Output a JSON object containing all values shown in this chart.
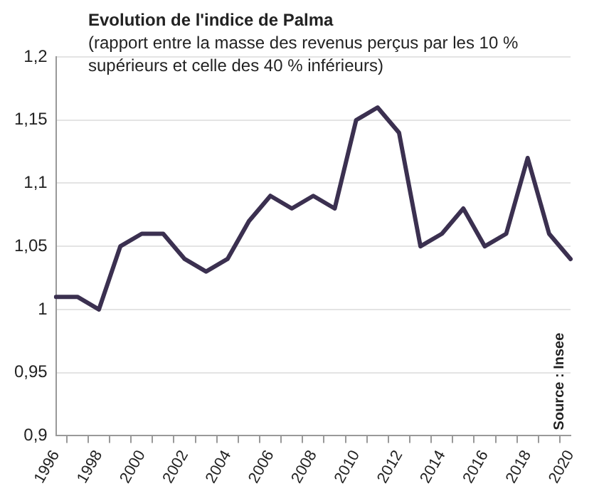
{
  "chart_data": {
    "type": "line",
    "title": "Evolution de l'indice de Palma",
    "subtitle": "(rapport entre la masse des revenus perçus par les 10 %\nsupérieurs et celle des 40 % inférieurs)",
    "annotations": [
      "Source : Insee"
    ],
    "categories": [
      "1996",
      null,
      "1998",
      null,
      "2000",
      null,
      "2002",
      null,
      "2004",
      null,
      "2006",
      null,
      "2008",
      null,
      "2010",
      null,
      "2012",
      null,
      "2014",
      null,
      "2016",
      null,
      "2018",
      null,
      "2020"
    ],
    "series": [
      {
        "color": "#3b3050",
        "values": [
          1.01,
          1.01,
          1.0,
          1.05,
          1.06,
          1.06,
          1.04,
          1.03,
          1.04,
          1.07,
          1.09,
          1.08,
          1.09,
          1.08,
          1.15,
          1.16,
          1.14,
          1.05,
          1.06,
          1.08,
          1.05,
          1.06,
          1.12,
          1.06,
          1.04
        ]
      }
    ],
    "ylim": [
      0.9,
      1.2
    ],
    "yticks": [
      {
        "value": 0.9,
        "label": "0,9"
      },
      {
        "value": 0.95,
        "label": "0,95"
      },
      {
        "value": 1,
        "label": "1"
      },
      {
        "value": 1.05,
        "label": "1,05"
      },
      {
        "value": 1.1,
        "label": "1,1"
      },
      {
        "value": 1.15,
        "label": "1,15"
      },
      {
        "value": 1.2,
        "label": "1,2"
      }
    ],
    "grid": "y",
    "legend": false,
    "marker": "none",
    "line_style": "solid"
  }
}
